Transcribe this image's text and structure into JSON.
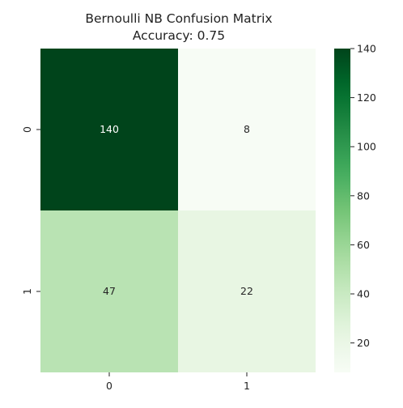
{
  "chart_data": {
    "type": "heatmap",
    "title": "Bernoulli NB Confusion Matrix",
    "subtitle": "Accuracy: 0.75",
    "xlabel": "",
    "ylabel": "",
    "x_categories": [
      "0",
      "1"
    ],
    "y_categories": [
      "0",
      "1"
    ],
    "values": [
      [
        140,
        8
      ],
      [
        47,
        22
      ]
    ],
    "cell_labels": [
      [
        "140",
        "8"
      ],
      [
        "47",
        "22"
      ]
    ],
    "colormap": "Greens",
    "colorbar": {
      "min": 8,
      "max": 140,
      "ticks": [
        20,
        40,
        60,
        80,
        100,
        120,
        140
      ],
      "tick_labels": [
        "20",
        "40",
        "60",
        "80",
        "100",
        "120",
        "140"
      ]
    },
    "grid": false,
    "legend": "colorbar-right"
  }
}
